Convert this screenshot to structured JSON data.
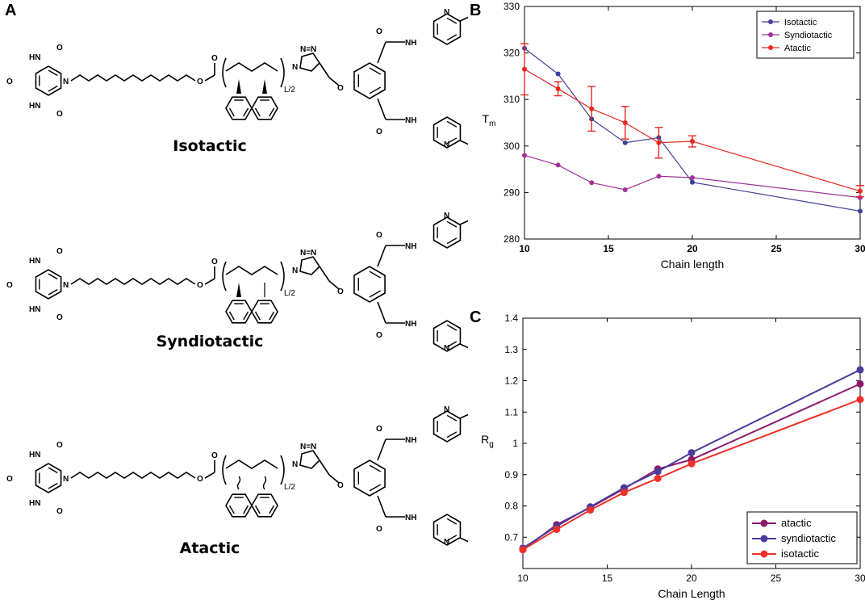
{
  "panels": {
    "a_label": "A",
    "b_label": "B",
    "c_label": "C"
  },
  "molecules": [
    {
      "name": "Isotactic",
      "end_label": "L/2"
    },
    {
      "name": "Syndiotactic",
      "end_label": "L/2"
    },
    {
      "name": "Atactic",
      "end_label": "L/2"
    }
  ],
  "atoms": {
    "nh": "NH",
    "hn": "HN",
    "o": "O",
    "n": "N",
    "nnn": "N=N"
  },
  "colors": {
    "isotactic_b": "#3f3f9a",
    "syndiotactic_b": "#a0339a",
    "atactic_b": "#e8271f",
    "atactic_c": "#8b1a6b",
    "syndiotactic_c": "#4a3c9c",
    "isotactic_c": "#f0302a"
  },
  "chart_data": [
    {
      "type": "line",
      "panel": "B",
      "xlabel": "Chain length",
      "ylabel": "T",
      "ylabel_sub": "m",
      "xlim": [
        10,
        30
      ],
      "ylim": [
        280,
        330
      ],
      "xticks": [
        "10",
        "15",
        "20",
        "25",
        "30"
      ],
      "yticks": [
        "280",
        "290",
        "300",
        "310",
        "320",
        "330"
      ],
      "legend_position": "top-right",
      "x": [
        10,
        12,
        14,
        16,
        18,
        20,
        30
      ],
      "series": [
        {
          "name": "Isotactic",
          "values": [
            321,
            315.5,
            305.8,
            300.7,
            301.8,
            292.2,
            286
          ]
        },
        {
          "name": "Syndiotactic",
          "values": [
            298,
            295.9,
            292.1,
            290.6,
            293.5,
            293.2,
            288.9
          ]
        },
        {
          "name": "Atactic",
          "values": [
            316.5,
            312.3,
            308,
            305,
            300.7,
            301,
            290.3
          ],
          "error": [
            5.5,
            1.5,
            4.8,
            3.5,
            3.3,
            1.2,
            1.2
          ]
        }
      ]
    },
    {
      "type": "line",
      "panel": "C",
      "xlabel": "Chain Length",
      "ylabel": "R",
      "ylabel_sub": "g",
      "xlim": [
        10,
        30
      ],
      "ylim": [
        0.6,
        1.4
      ],
      "xticks": [
        "10",
        "15",
        "20",
        "25",
        "30"
      ],
      "yticks": [
        "0.7",
        "0.8",
        "0.9",
        "1",
        "1.1",
        "1.2",
        "1.3",
        "1.4"
      ],
      "legend_position": "bottom-right",
      "x": [
        10,
        12,
        14,
        16,
        18,
        20,
        30
      ],
      "series": [
        {
          "name": "atactic",
          "values": [
            0.66,
            0.74,
            0.795,
            0.855,
            0.918,
            0.948,
            1.19
          ]
        },
        {
          "name": "syndiotactic",
          "values": [
            0.665,
            0.735,
            0.797,
            0.858,
            0.91,
            0.97,
            1.235
          ]
        },
        {
          "name": "isotactic",
          "values": [
            0.66,
            0.725,
            0.787,
            0.843,
            0.888,
            0.935,
            1.14
          ]
        }
      ]
    }
  ]
}
